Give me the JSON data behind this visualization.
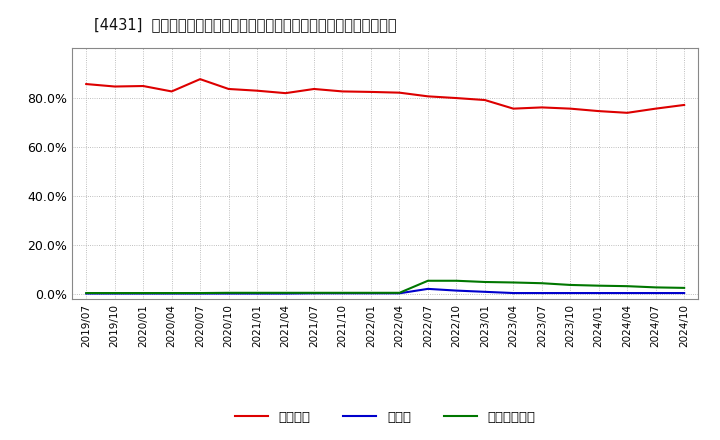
{
  "title": "[4431]  自己資本、のれん、繰延税金資産の総資産に対する比率の推移",
  "background_color": "#ffffff",
  "plot_background_color": "#ffffff",
  "grid_color": "#aaaaaa",
  "x_labels": [
    "2019/07",
    "2019/10",
    "2020/01",
    "2020/04",
    "2020/07",
    "2020/10",
    "2021/01",
    "2021/04",
    "2021/07",
    "2021/10",
    "2022/01",
    "2022/04",
    "2022/07",
    "2022/10",
    "2023/01",
    "2023/04",
    "2023/07",
    "2023/10",
    "2024/01",
    "2024/04",
    "2024/07",
    "2024/10"
  ],
  "equity_ratio": [
    85.5,
    84.5,
    84.7,
    82.5,
    87.5,
    83.5,
    82.8,
    81.8,
    83.5,
    82.5,
    82.3,
    82.0,
    80.5,
    79.8,
    79.0,
    75.5,
    76.0,
    75.5,
    74.5,
    73.8,
    75.5,
    77.0
  ],
  "goodwill_ratio": [
    0.3,
    0.3,
    0.3,
    0.3,
    0.3,
    0.3,
    0.3,
    0.3,
    0.4,
    0.4,
    0.4,
    0.4,
    2.2,
    1.5,
    1.0,
    0.5,
    0.5,
    0.5,
    0.5,
    0.5,
    0.5,
    0.5
  ],
  "deferred_tax_ratio": [
    0.5,
    0.5,
    0.5,
    0.5,
    0.5,
    0.6,
    0.6,
    0.6,
    0.6,
    0.6,
    0.6,
    0.6,
    5.5,
    5.5,
    5.0,
    4.8,
    4.5,
    3.8,
    3.5,
    3.3,
    2.8,
    2.6
  ],
  "equity_color": "#dd0000",
  "goodwill_color": "#0000cc",
  "deferred_tax_color": "#007700",
  "legend_label_equity": "自己資本",
  "legend_label_goodwill": "のれん",
  "legend_label_deferred": "繰延税金資産",
  "ylim": [
    -2,
    100
  ],
  "yticks": [
    0,
    20,
    40,
    60,
    80
  ],
  "ytick_labels": [
    "0.0%",
    "20.0%",
    "40.0%",
    "60.0%",
    "80.0%"
  ]
}
